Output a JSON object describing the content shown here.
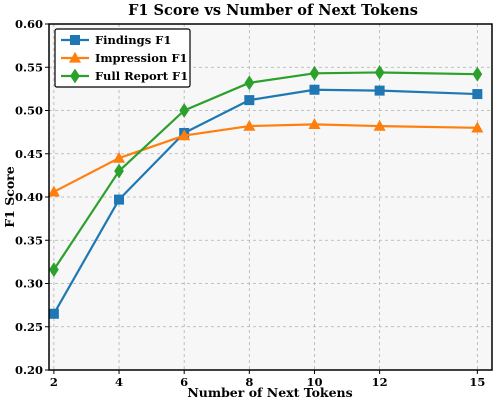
{
  "chart_data": {
    "type": "line",
    "title": "F1 Score vs Number of Next Tokens",
    "xlabel": "Number of Next Tokens",
    "ylabel": "F1 Score",
    "x": [
      2,
      4,
      6,
      8,
      10,
      12,
      15
    ],
    "xlim": [
      1.85,
      15.45
    ],
    "ylim": [
      0.2,
      0.6
    ],
    "yticks": [
      "0.20",
      "0.25",
      "0.30",
      "0.35",
      "0.40",
      "0.45",
      "0.50",
      "0.55",
      "0.60"
    ],
    "grid": true,
    "legend_position": "top-left",
    "series": [
      {
        "name": "Findings F1",
        "color": "#1f77b4",
        "marker": "square",
        "values": [
          0.265,
          0.397,
          0.474,
          0.512,
          0.524,
          0.523,
          0.519
        ]
      },
      {
        "name": "Impression F1",
        "color": "#ff7f0e",
        "marker": "triangle",
        "values": [
          0.406,
          0.445,
          0.471,
          0.482,
          0.484,
          0.482,
          0.48
        ]
      },
      {
        "name": "Full Report F1",
        "color": "#2ca02c",
        "marker": "diamond",
        "values": [
          0.316,
          0.43,
          0.5,
          0.532,
          0.543,
          0.544,
          0.542
        ]
      }
    ]
  }
}
